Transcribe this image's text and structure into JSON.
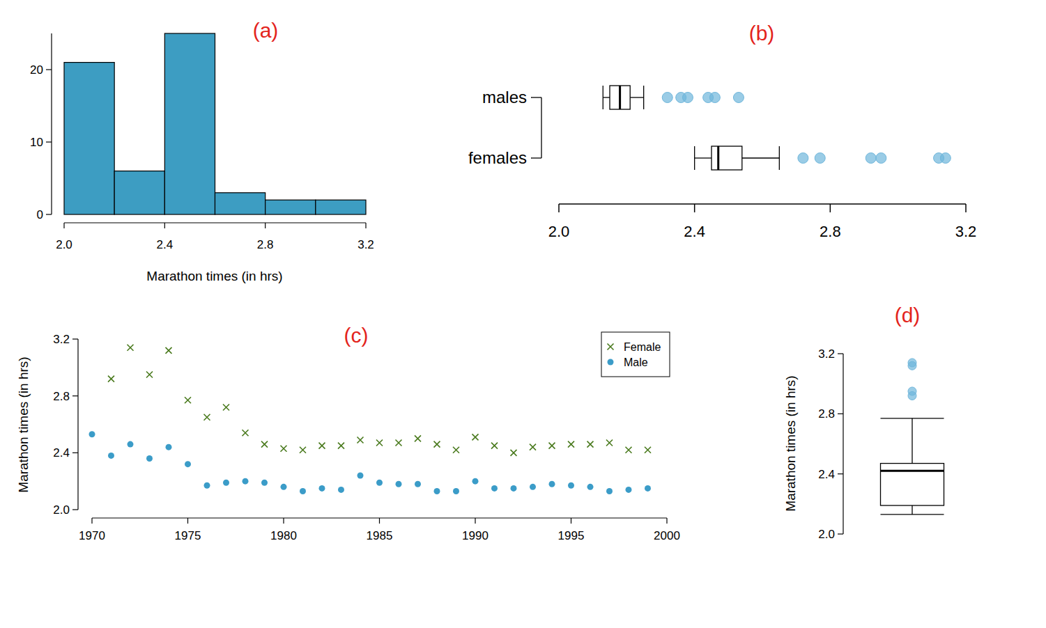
{
  "chart_data": [
    {
      "type": "histogram",
      "title": "(a)",
      "x_label": "Marathon times (in hrs)",
      "bins": [
        2.0,
        2.2,
        2.4,
        2.6,
        2.8,
        3.0,
        3.2
      ],
      "values": [
        21,
        6,
        25,
        3,
        2,
        2
      ],
      "color": "#3d9dc2",
      "xlim": [
        2.0,
        3.2
      ],
      "xticks": [
        {
          "value": 2.0,
          "label": "2.0"
        },
        2.4,
        2.8,
        3.2
      ],
      "ylim": [
        0,
        25
      ],
      "yticks": [
        0,
        10,
        20
      ],
      "grid": false
    },
    {
      "type": "boxplot",
      "title": "(b)",
      "orientation": "horizontal",
      "categories": [
        "males",
        "females"
      ],
      "boxes": [
        {
          "min": 2.13,
          "q1": 2.15,
          "median": 2.18,
          "q3": 2.21,
          "max": 2.25,
          "outliers": [
            2.32,
            2.36,
            2.38,
            2.44,
            2.46,
            2.53
          ]
        },
        {
          "min": 2.4,
          "q1": 2.45,
          "median": 2.47,
          "q3": 2.54,
          "max": 2.65,
          "outliers": [
            2.72,
            2.77,
            2.92,
            2.95,
            3.12,
            3.14
          ]
        }
      ],
      "color": "#6fb6db",
      "xlim": [
        2.0,
        3.2
      ],
      "xticks": [
        {
          "value": 2.0,
          "label": "2.0"
        },
        2.4,
        2.8,
        3.2
      ],
      "grid": false
    },
    {
      "type": "scatter",
      "title": "(c)",
      "y_label": "Marathon times (in hrs)",
      "x": [
        1970,
        1971,
        1972,
        1973,
        1974,
        1975,
        1976,
        1977,
        1978,
        1979,
        1980,
        1981,
        1982,
        1983,
        1984,
        1985,
        1986,
        1987,
        1988,
        1989,
        1990,
        1991,
        1992,
        1993,
        1994,
        1995,
        1996,
        1997,
        1998,
        1999
      ],
      "series": [
        {
          "name": "Female",
          "color": "#4a7a1e",
          "marker": "x",
          "values": [
            null,
            2.92,
            3.14,
            2.95,
            3.12,
            2.77,
            2.65,
            2.72,
            2.54,
            2.46,
            2.43,
            2.42,
            2.45,
            2.45,
            2.49,
            2.47,
            2.47,
            2.5,
            2.46,
            2.42,
            2.51,
            2.45,
            2.4,
            2.44,
            2.45,
            2.46,
            2.46,
            2.47,
            2.42,
            2.42
          ]
        },
        {
          "name": "Male",
          "color": "#3b9cc8",
          "marker": "circle",
          "values": [
            2.53,
            2.38,
            2.46,
            2.36,
            2.44,
            2.32,
            2.17,
            2.19,
            2.2,
            2.19,
            2.16,
            2.13,
            2.15,
            2.14,
            2.24,
            2.19,
            2.18,
            2.18,
            2.13,
            2.13,
            2.2,
            2.15,
            2.15,
            2.16,
            2.18,
            2.17,
            2.16,
            2.13,
            2.14,
            2.15
          ]
        }
      ],
      "xlim": [
        1970,
        2000
      ],
      "xticks": [
        1970,
        1975,
        1980,
        1985,
        1990,
        1995,
        2000
      ],
      "ylim": [
        2.0,
        3.2
      ],
      "yticks": [
        {
          "value": 2.0,
          "label": "2.0"
        },
        2.4,
        2.8,
        3.2
      ],
      "legend": "top-right",
      "grid": false
    },
    {
      "type": "boxplot",
      "title": "(d)",
      "y_label": "Marathon times (in hrs)",
      "boxes": [
        {
          "min": 2.13,
          "q1": 2.19,
          "median": 2.42,
          "q3": 2.47,
          "max": 2.77,
          "outliers": [
            2.92,
            2.95,
            3.12,
            3.14
          ]
        }
      ],
      "color": "#6fb6db",
      "ylim": [
        2.0,
        3.2
      ],
      "yticks": [
        {
          "value": 2.0,
          "label": "2.0"
        },
        2.4,
        2.8,
        3.2
      ],
      "grid": false
    }
  ]
}
